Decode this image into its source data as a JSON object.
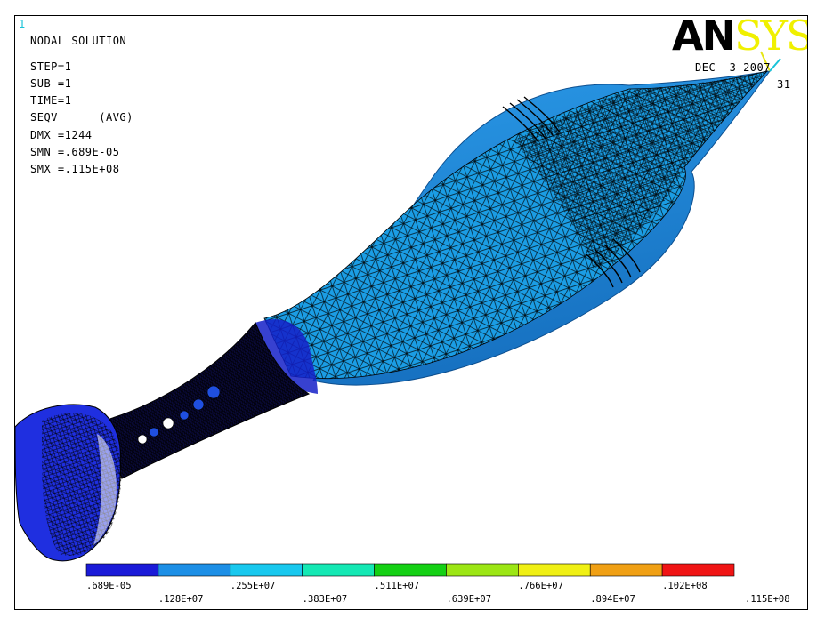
{
  "window_number": "1",
  "header": {
    "solution_title": "NODAL SOLUTION",
    "step": "STEP=1",
    "sub": "SUB =1",
    "time": "TIME=1",
    "result_item": "SEQV      (AVG)",
    "dmx": "DMX =1244",
    "smn": "SMN =.689E-05",
    "smx": "SMX =.115E+08"
  },
  "logo": {
    "left": "AN",
    "right": "SYS"
  },
  "date_text": "DEC  3 2007",
  "time_text": "31",
  "legend": {
    "colors": [
      "#1a1ad8",
      "#1d8fe6",
      "#19c8ee",
      "#14e8b4",
      "#14d014",
      "#9ce614",
      "#f0f014",
      "#f0a014",
      "#f01414"
    ],
    "top_labels": [
      ".689E-05",
      ".255E+07",
      ".511E+07",
      ".766E+07",
      ".102E+08"
    ],
    "bottom_labels": [
      ".128E+07",
      ".383E+07",
      ".639E+07",
      ".894E+07",
      ".115E+08"
    ]
  },
  "model_colors": {
    "shell": "#1e8ad8",
    "shell_shade": "#1565b0",
    "mesh_fill": "#1a9be0",
    "dark_blue": "#1420c8",
    "mesh_line": "#000000"
  }
}
